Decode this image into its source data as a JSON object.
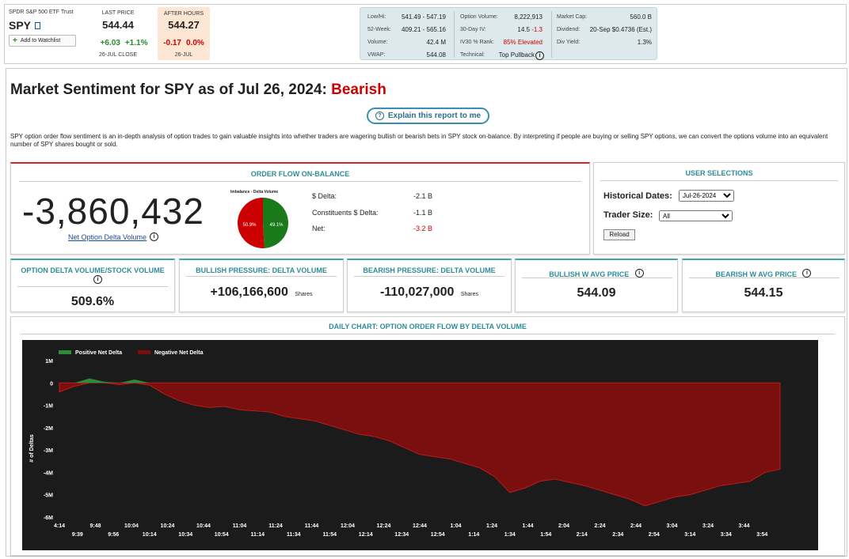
{
  "ticker": {
    "fund_name": "SPDR S&P 500 ETF Trust",
    "symbol": "SPY",
    "watchlist_label": "Add to Watchlist",
    "last_price_label": "LAST PRICE",
    "last_price": "544.44",
    "change": "+6.03",
    "change_pct": "+1.1%",
    "last_close_label": "26-JUL CLOSE",
    "after_hours_label": "AFTER HOURS",
    "after_hours_price": "544.27",
    "ah_change": "-0.17",
    "ah_change_pct": "0.0%",
    "ah_date": "26-JUL"
  },
  "stats": {
    "col1": [
      {
        "label": "Low/Hi:",
        "value": "541.49 - 547.19"
      },
      {
        "label": "52-Week:",
        "value": "409.21 - 565.16"
      },
      {
        "label": "Volume:",
        "value": "42.4 M"
      },
      {
        "label": "VWAP:",
        "value": "544.08"
      }
    ],
    "col2": [
      {
        "label": "Option Volume:",
        "value": "8,222,913"
      },
      {
        "label": "30-Day IV:",
        "value": "14.5",
        "delta": "-1.3"
      },
      {
        "label": "IV30 % Rank:",
        "value": "85% Elevated"
      },
      {
        "label": "Technical:",
        "value": "Top Pullback"
      }
    ],
    "col3": [
      {
        "label": "Market Cap:",
        "value": "560.0 B"
      },
      {
        "label": "Dividend:",
        "value": "20-Sep $0.4736 (Est.)"
      },
      {
        "label": "Div Yield:",
        "value": "1.3%"
      }
    ]
  },
  "header": {
    "title_prefix": "Market Sentiment for SPY as of Jul 26, 2024:",
    "sentiment": "Bearish",
    "explain_button": "Explain this report to me",
    "description": "SPY option order flow sentiment is an in-depth analysis of option trades to gain valuable insights into whether traders are wagering bullish or bearish bets in SPY stock on-balance. By interpreting if people are buying or selling SPY options, we can convert the options volume into an equivalent number of SPY shares bought or sold."
  },
  "order_flow": {
    "title": "ORDER FLOW ON-BALANCE",
    "big_number": "-3,860,432",
    "link_label": "Net Option Delta Volume",
    "pie_title": "Imbalance - Delta Volume",
    "pie_red_label": "50.9%",
    "pie_green_label": "49.1%",
    "pie_green_fraction": 0.491,
    "rows": [
      {
        "label": "$ Delta:",
        "value": "-2.1 B"
      },
      {
        "label": "Constituents $ Delta:",
        "value": "-1.1 B"
      },
      {
        "label": "Net:",
        "value": "-3.2 B"
      }
    ]
  },
  "user_selections": {
    "title": "USER SELECTIONS",
    "hist_label": "Historical Dates:",
    "hist_value": "Jul-26-2024",
    "trader_label": "Trader Size:",
    "trader_value": "All",
    "reload_label": "Reload"
  },
  "metrics": [
    {
      "title": "OPTION DELTA VOLUME/STOCK VOLUME",
      "value": "509.6%",
      "unit": ""
    },
    {
      "title": "BULLISH PRESSURE: DELTA VOLUME",
      "value": "+106,166,600",
      "unit": "Shares"
    },
    {
      "title": "BEARISH PRESSURE: DELTA VOLUME",
      "value": "-110,027,000",
      "unit": "Shares"
    },
    {
      "title": "BULLISH W AVG PRICE",
      "value": "544.09",
      "unit": ""
    },
    {
      "title": "BEARISH W AVG PRICE",
      "value": "544.15",
      "unit": ""
    }
  ],
  "chart_title": "DAILY CHART: OPTION ORDER FLOW BY DELTA VOLUME",
  "colors": {
    "positive": "#2e8b3a",
    "negative": "#7a0f0f",
    "teal": "#2e8c99",
    "bearish": "#cc0000"
  },
  "chart_data": {
    "type": "area",
    "ylabel": "# of Deltas",
    "yticks": [
      "1M",
      "0",
      "-1M",
      "-2M",
      "-3M",
      "-4M",
      "-5M",
      "-6M"
    ],
    "ylim": [
      -6000000,
      1000000
    ],
    "legend": [
      "Positive Net Delta",
      "Negative Net Delta"
    ],
    "xticks_top": [
      "4:14",
      "9:48",
      "10:04",
      "10:24",
      "10:44",
      "11:04",
      "11:24",
      "11:44",
      "12:04",
      "12:24",
      "12:44",
      "1:04",
      "1:24",
      "1:44",
      "2:04",
      "2:24",
      "2:44",
      "3:04",
      "3:24",
      "3:44"
    ],
    "xticks_bottom": [
      "9:39",
      "9:56",
      "10:14",
      "10:34",
      "10:54",
      "11:14",
      "11:34",
      "11:54",
      "12:14",
      "12:34",
      "12:54",
      "1:14",
      "1:34",
      "1:54",
      "2:14",
      "2:34",
      "2:54",
      "3:14",
      "3:34",
      "3:54"
    ],
    "series": [
      {
        "name": "Net Delta",
        "values": [
          -400000,
          -150000,
          200000,
          50000,
          -80000,
          150000,
          -100000,
          -500000,
          -800000,
          -1000000,
          -1100000,
          -1050000,
          -1200000,
          -1250000,
          -1300000,
          -1500000,
          -1600000,
          -1700000,
          -1900000,
          -2100000,
          -2300000,
          -2400000,
          -2600000,
          -2900000,
          -3200000,
          -3300000,
          -3400000,
          -3600000,
          -3800000,
          -4200000,
          -4900000,
          -4700000,
          -4400000,
          -4300000,
          -4450000,
          -4600000,
          -4800000,
          -5000000,
          -5200000,
          -5500000,
          -5300000,
          -5100000,
          -5000000,
          -4800000,
          -4600000,
          -4500000,
          -4400000,
          -4000000,
          -3860432
        ]
      }
    ]
  }
}
